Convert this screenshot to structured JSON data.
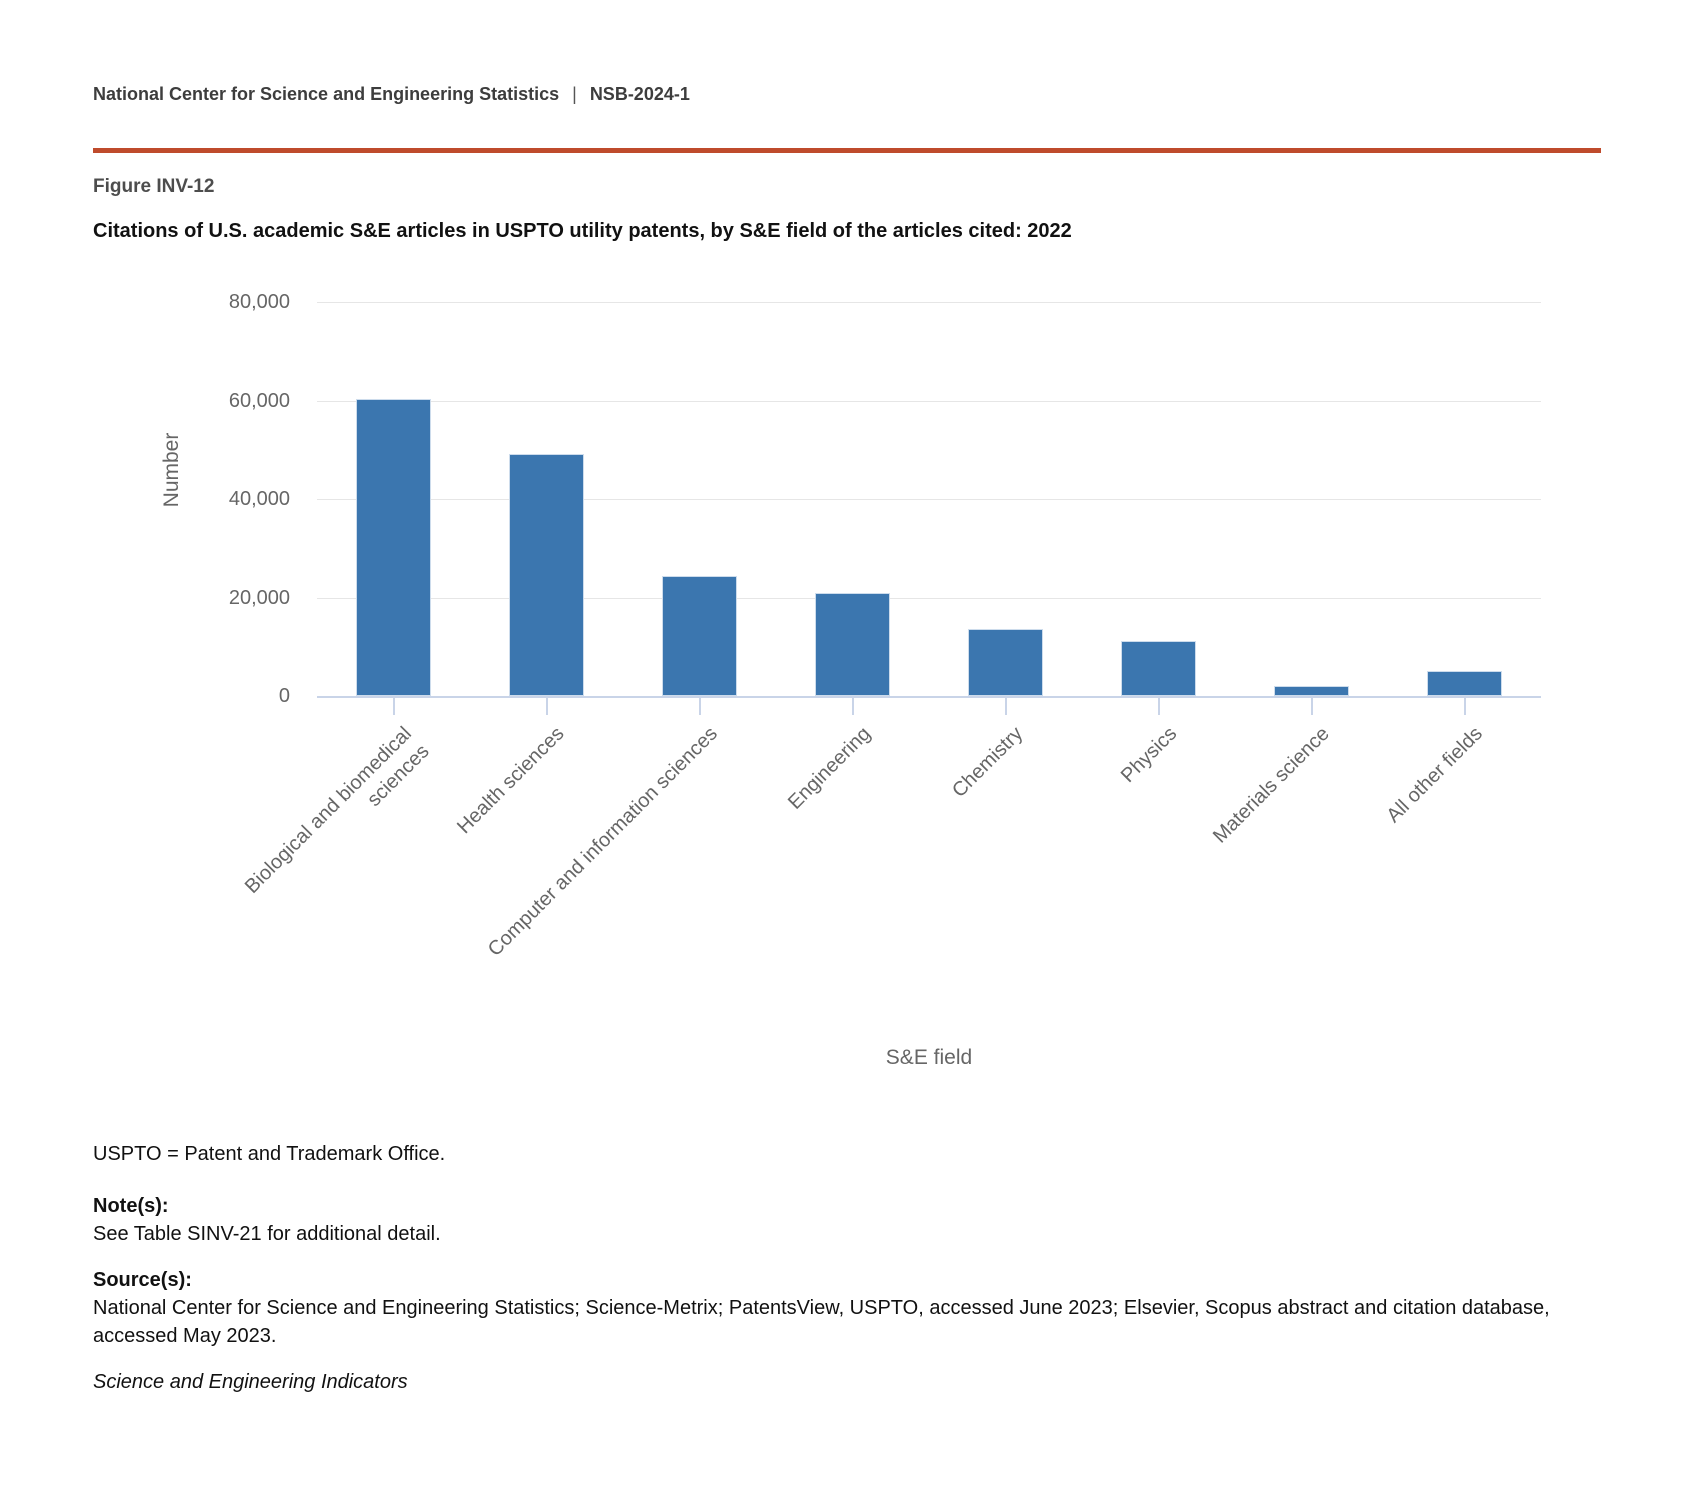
{
  "header": {
    "org": "National Center for Science and Engineering Statistics",
    "separator": "|",
    "report_id": "NSB-2024-1"
  },
  "figure": {
    "label": "Figure INV-12",
    "title": "Citations of U.S. academic S&E articles in USPTO utility patents, by S&E field of the articles cited: 2022"
  },
  "chart_data": {
    "type": "bar",
    "title": "Citations of U.S. academic S&E articles in USPTO utility patents, by S&E field of the articles cited: 2022",
    "xlabel": "S&E field",
    "ylabel": "Number",
    "ylim": [
      0,
      80000
    ],
    "yticks": [
      0,
      20000,
      40000,
      60000,
      80000
    ],
    "ytick_labels": [
      "0",
      "20,000",
      "40,000",
      "60,000",
      "80,000"
    ],
    "grid": "horizontal-light-gray",
    "legend": "none",
    "bar_color": "#3b76af",
    "categories": [
      "Biological and biomedical sciences",
      "Health sciences",
      "Computer and information sciences",
      "Engineering",
      "Chemistry",
      "Physics",
      "Materials science",
      "All other fields"
    ],
    "category_lines": [
      [
        "Biological and biomedical",
        "sciences"
      ],
      [
        "Health sciences"
      ],
      [
        "Computer and information sciences"
      ],
      [
        "Engineering"
      ],
      [
        "Chemistry"
      ],
      [
        "Physics"
      ],
      [
        "Materials science"
      ],
      [
        "All other fields"
      ]
    ],
    "values": [
      60400,
      49100,
      24300,
      21000,
      13700,
      11200,
      2000,
      5000
    ]
  },
  "notes": {
    "abbreviation": "USPTO = Patent and Trademark Office.",
    "notes_heading": "Note(s):",
    "notes_text": "See Table SINV-21 for additional detail.",
    "sources_heading": "Source(s):",
    "sources_text": "National Center for Science and Engineering Statistics; Science-Metrix; PatentsView, USPTO, accessed June 2023; Elsevier, Scopus abstract and citation database, accessed May 2023.",
    "attribution": "Science and Engineering Indicators"
  },
  "colors": {
    "accent_rule": "#bf4b2c",
    "bar": "#3b76af",
    "axis_text": "#666666",
    "gridline": "#e6e6e6",
    "axis_line": "#c9d4e8",
    "header_text": "#3d3d3d",
    "title_text": "#111111"
  }
}
